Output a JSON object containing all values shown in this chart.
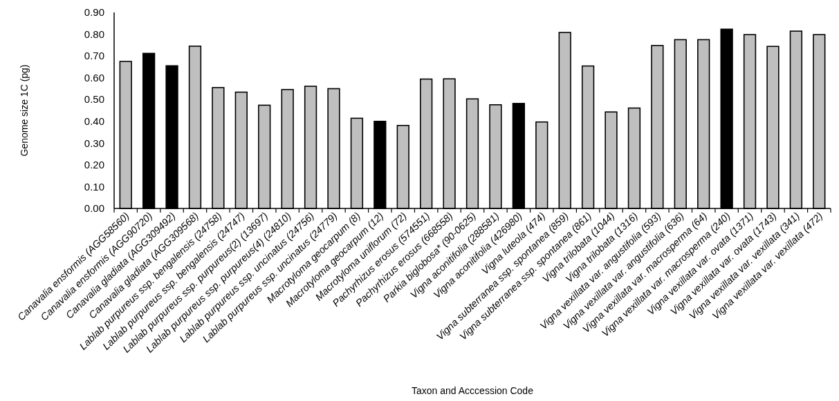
{
  "chart_data": {
    "type": "bar",
    "xlabel": "Taxon and Acccession Code",
    "ylabel": "Genome size 1C (pg)",
    "categories": [
      "Canavalia ensformis (AGG58560)",
      "Canavalia ensformis (AGG90720)",
      "Canavalia gladiata (AGG309492)",
      "Canavalia gladiata (AGG309568)",
      "Lablab purpureus ssp. bengalensis (24758)",
      "Lablab purpureus ssp. bengalensis (24747)",
      "Lablab purpureus ssp. purpureus(2) (13697)",
      "Lablab purpureus ssp. purpureus(4) (24810)",
      "Lablab purpureus ssp. uncinatus (24756)",
      "Lablab purpureus ssp. uncinatus (24779)",
      "Macrotyloma geocarpum (8)",
      "Macrotyloma geocarpum (12)",
      "Macrotyloma uniflorum (72)",
      "Pachyrhizus erosus (574551)",
      "Pachyrhizus erosus (668558)",
      "Parkia biglobosa* (90-0625)",
      "Vigna aconitifolia (288581)",
      "Vigna aconitifolia (426980)",
      "Vigna luteola (474)",
      "Vigna subterranea ssp. spontanea (859)",
      "Vigna subterranea ssp. spontanea (861)",
      "Vigna trilobata (1044)",
      "Vigna trilobata (1316)",
      "Vigna vexillata var. angustifolia (593)",
      "Vigna vexillata var. angustifolia (636)",
      "Vigna vexillata var. macrosperma (64)",
      "Vigna vexillata var. macrosperma (240)",
      "Vigna vexillata var. ovata (1371)",
      "Vigna vexillata var. ovata (1743)",
      "Vigna vexillata var. vexillata (341)",
      "Vigna vexillata var. vexillata (472)"
    ],
    "values": [
      0.675,
      0.712,
      0.655,
      0.745,
      0.555,
      0.534,
      0.474,
      0.546,
      0.561,
      0.55,
      0.414,
      0.4,
      0.381,
      0.594,
      0.595,
      0.503,
      0.476,
      0.482,
      0.397,
      0.808,
      0.654,
      0.443,
      0.461,
      0.748,
      0.775,
      0.775,
      0.823,
      0.798,
      0.744,
      0.814,
      0.798
    ],
    "colors": [
      "#bfbfbf",
      "#000000",
      "#000000",
      "#bfbfbf",
      "#bfbfbf",
      "#bfbfbf",
      "#bfbfbf",
      "#bfbfbf",
      "#bfbfbf",
      "#bfbfbf",
      "#bfbfbf",
      "#000000",
      "#bfbfbf",
      "#bfbfbf",
      "#bfbfbf",
      "#bfbfbf",
      "#bfbfbf",
      "#000000",
      "#bfbfbf",
      "#bfbfbf",
      "#bfbfbf",
      "#bfbfbf",
      "#bfbfbf",
      "#bfbfbf",
      "#bfbfbf",
      "#bfbfbf",
      "#000000",
      "#bfbfbf",
      "#bfbfbf",
      "#bfbfbf",
      "#bfbfbf"
    ],
    "ylim": [
      0,
      0.9
    ],
    "yticks": [
      {
        "value": 0,
        "label": "0.00"
      },
      {
        "value": 0.1,
        "label": "0.10"
      },
      {
        "value": 0.2,
        "label": "0.20"
      },
      {
        "value": 0.3,
        "label": "0.30"
      },
      {
        "value": 0.4,
        "label": "0.40"
      },
      {
        "value": 0.5,
        "label": "0.50"
      },
      {
        "value": 0.6,
        "label": "0.60"
      },
      {
        "value": 0.7,
        "label": "0.70"
      },
      {
        "value": 0.8,
        "label": "0.80"
      },
      {
        "value": 0.9,
        "label": "0.90"
      }
    ],
    "grid": false
  }
}
